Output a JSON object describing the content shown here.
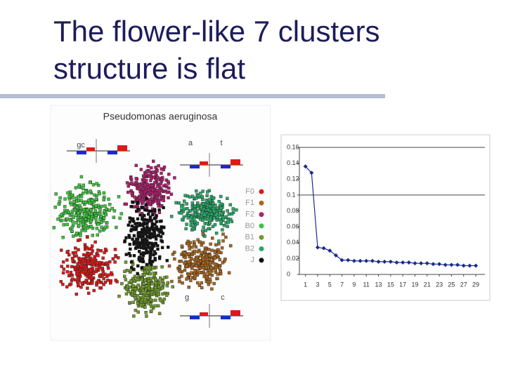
{
  "title": "The flower-like 7 clusters structure is flat",
  "scatter": {
    "title": "Pseudomonas aeruginosa",
    "legend": [
      {
        "name": "F0",
        "color": "#e01818"
      },
      {
        "name": "F1",
        "color": "#a8671e"
      },
      {
        "name": "F2",
        "color": "#b0206e"
      },
      {
        "name": "B0",
        "color": "#3ec43e"
      },
      {
        "name": "B1",
        "color": "#6f9a2a"
      },
      {
        "name": "B2",
        "color": "#28a868"
      },
      {
        "name": "J",
        "color": "#111111"
      }
    ],
    "labels": [
      "gc",
      "a",
      "t",
      "g",
      "c"
    ]
  },
  "chart_data": {
    "type": "line",
    "color": "#1a2a8a",
    "x": [
      1,
      2,
      3,
      4,
      5,
      6,
      7,
      8,
      9,
      10,
      11,
      12,
      13,
      14,
      15,
      16,
      17,
      18,
      19,
      20,
      21,
      22,
      23,
      24,
      25,
      26,
      27,
      28,
      29
    ],
    "values": [
      0.136,
      0.128,
      0.034,
      0.033,
      0.03,
      0.024,
      0.018,
      0.018,
      0.017,
      0.017,
      0.017,
      0.017,
      0.016,
      0.016,
      0.016,
      0.015,
      0.015,
      0.015,
      0.014,
      0.014,
      0.014,
      0.013,
      0.013,
      0.012,
      0.012,
      0.012,
      0.011,
      0.011,
      0.011
    ],
    "xlim": [
      0,
      30.5
    ],
    "xticks": [
      1,
      3,
      5,
      7,
      9,
      11,
      13,
      15,
      17,
      19,
      21,
      23,
      25,
      27,
      29
    ],
    "ylim": [
      0,
      0.16
    ],
    "yticks": [
      0,
      0.02,
      0.04,
      0.06,
      0.08,
      0.1,
      0.12,
      0.14,
      0.16
    ],
    "hline": 0.1
  }
}
